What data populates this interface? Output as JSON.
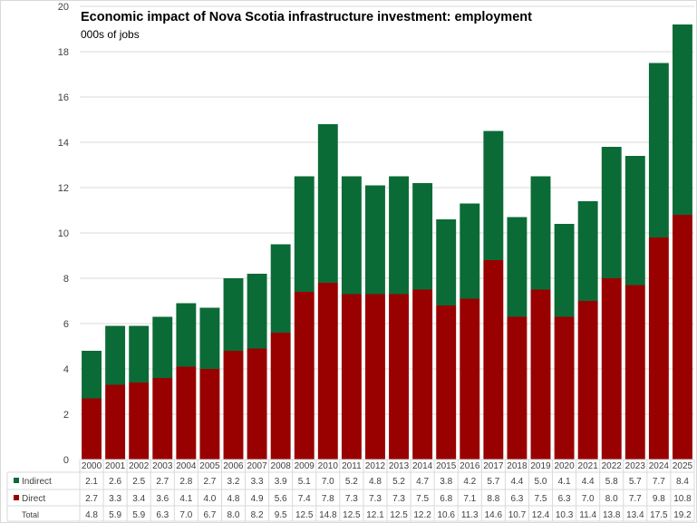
{
  "chart_data": {
    "type": "bar",
    "stacked": true,
    "title": "Economic impact of Nova Scotia infrastructure investment: employment",
    "subtitle": "000s of jobs",
    "xlabel": "",
    "ylabel": "000s of jobs",
    "ylim": [
      0,
      20
    ],
    "yticks": [
      0,
      2,
      4,
      6,
      8,
      10,
      12,
      14,
      16,
      18,
      20
    ],
    "grid": true,
    "legend": "data-table",
    "categories": [
      "2000",
      "2001",
      "2002",
      "2003",
      "2004",
      "2005",
      "2006",
      "2007",
      "2008",
      "2009",
      "2010",
      "2011",
      "2012",
      "2013",
      "2014",
      "2015",
      "2016",
      "2017",
      "2018",
      "2019",
      "2020",
      "2021",
      "2022",
      "2023",
      "2024",
      "2025"
    ],
    "series": [
      {
        "name": "Direct",
        "color": "#990000",
        "values": [
          2.7,
          3.3,
          3.4,
          3.6,
          4.1,
          4.0,
          4.8,
          4.9,
          5.6,
          7.4,
          7.8,
          7.3,
          7.3,
          7.3,
          7.5,
          6.8,
          7.1,
          8.8,
          6.3,
          7.5,
          6.3,
          7.0,
          8.0,
          7.7,
          9.8,
          10.8
        ]
      },
      {
        "name": "Indirect",
        "color": "#0b6b36",
        "values": [
          2.1,
          2.6,
          2.5,
          2.7,
          2.8,
          2.7,
          3.2,
          3.3,
          3.9,
          5.1,
          7.0,
          5.2,
          4.8,
          5.2,
          4.7,
          3.8,
          4.2,
          5.7,
          4.4,
          5.0,
          4.1,
          4.4,
          5.8,
          5.7,
          7.7,
          8.4
        ]
      }
    ],
    "total_label": "Total",
    "totals": [
      4.8,
      5.9,
      5.9,
      6.3,
      7.0,
      6.7,
      8.0,
      8.2,
      9.5,
      12.5,
      14.8,
      12.5,
      12.1,
      12.5,
      12.2,
      10.6,
      11.3,
      14.6,
      10.7,
      12.4,
      10.3,
      11.4,
      13.8,
      13.4,
      17.5,
      19.2
    ]
  }
}
